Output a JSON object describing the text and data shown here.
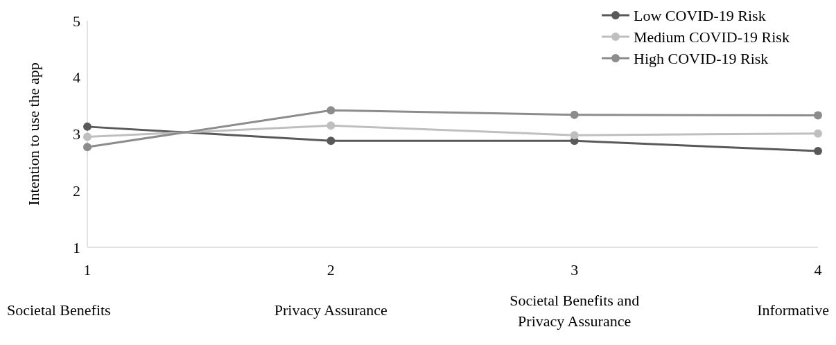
{
  "chart_data": {
    "type": "line",
    "ylabel": "Intention to use the app",
    "x": [
      1,
      2,
      3,
      4
    ],
    "xlim": [
      1,
      4
    ],
    "xticks": [
      1,
      2,
      3,
      4
    ],
    "ylim": [
      1,
      5
    ],
    "yticks": [
      1,
      2,
      3,
      4,
      5
    ],
    "grid": false,
    "legend": "top right",
    "marker": "circle",
    "line_style": "solid",
    "series": [
      {
        "name": "Low COVID-19 Risk",
        "color": "#595959",
        "values": [
          3.13,
          2.88,
          2.88,
          2.7
        ]
      },
      {
        "name": "Medium COVID-19 Risk",
        "color": "#bfbfbf",
        "values": [
          2.95,
          3.15,
          2.98,
          3.01
        ]
      },
      {
        "name": "High COVID-19 Risk",
        "color": "#8c8c8c",
        "values": [
          2.77,
          3.42,
          3.34,
          3.33
        ]
      }
    ],
    "annotations": [
      "Societal Benefits",
      "Privacy Assurance",
      "Societal Benefits and Privacy Assurance",
      "Informative"
    ]
  }
}
